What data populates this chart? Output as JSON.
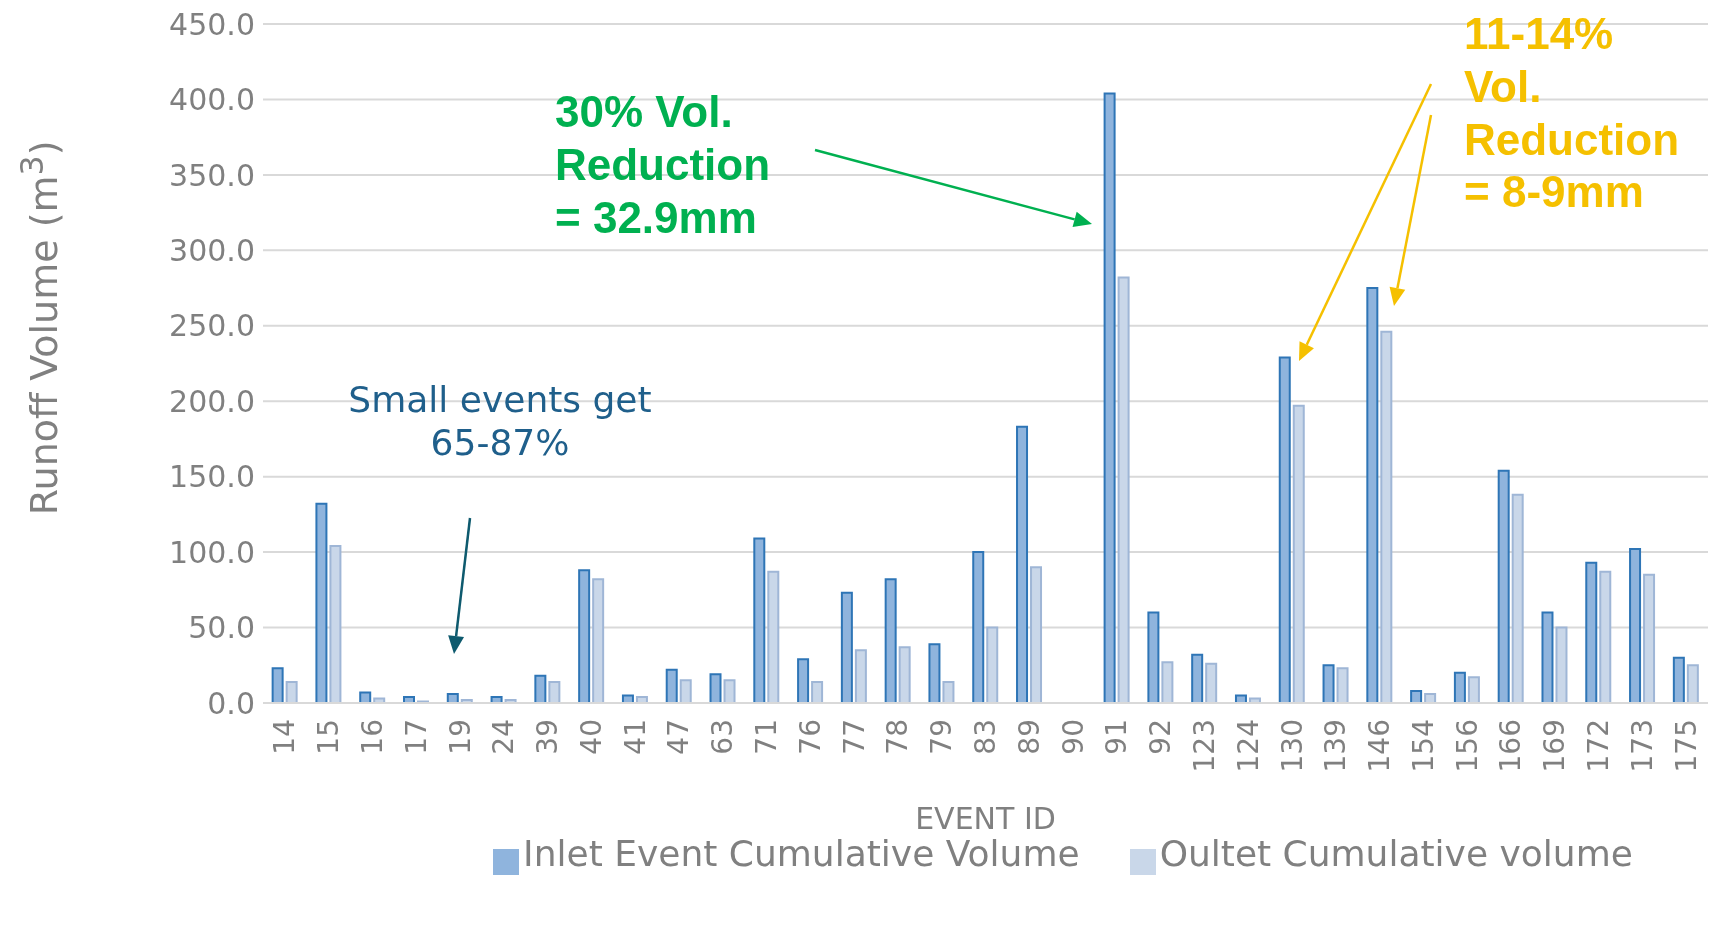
{
  "chart_data": {
    "type": "bar",
    "xlabel": "EVENT ID",
    "ylabel": "Runoff Volume (m$^{3}$)",
    "categories": [
      "14",
      "15",
      "16",
      "17",
      "19",
      "24",
      "39",
      "40",
      "41",
      "47",
      "63",
      "71",
      "76",
      "77",
      "78",
      "79",
      "83",
      "89",
      "90",
      "91",
      "92",
      "123",
      "124",
      "130",
      "139",
      "146",
      "154",
      "156",
      "166",
      "169",
      "172",
      "173",
      "175"
    ],
    "series": [
      {
        "name": "Inlet Event Cumulative Volume",
        "color": "#8fb4dd",
        "values": [
          23,
          132,
          7,
          4,
          6,
          4,
          18,
          88,
          5,
          22,
          19,
          109,
          29,
          73,
          82,
          39,
          100,
          183,
          0,
          404,
          60,
          32,
          5,
          229,
          25,
          275,
          8,
          20,
          154,
          60,
          93,
          102,
          30
        ]
      },
      {
        "name": "Oultet Cumulative volume",
        "color": "#c9d7e9",
        "values": [
          14,
          104,
          3,
          1,
          2,
          2,
          14,
          82,
          4,
          15,
          15,
          87,
          14,
          35,
          37,
          14,
          50,
          90,
          0,
          282,
          27,
          26,
          3,
          197,
          23,
          246,
          6,
          17,
          138,
          50,
          87,
          85,
          25
        ]
      }
    ],
    "ylim": [
      0,
      450
    ],
    "yticks": [
      {
        "value": 0,
        "label": "0.0"
      },
      {
        "value": 50,
        "label": "50.0"
      },
      {
        "value": 100,
        "label": "100.0"
      },
      {
        "value": 150,
        "label": "150.0"
      },
      {
        "value": 200,
        "label": "200.0"
      },
      {
        "value": 250,
        "label": "250.0"
      },
      {
        "value": 300,
        "label": "300.0"
      },
      {
        "value": 350,
        "label": "350.0"
      },
      {
        "value": 400,
        "label": "400.0"
      },
      {
        "value": 450,
        "label": "450.0"
      }
    ],
    "grid": "y",
    "legend": "bottom",
    "annotations": [
      "30% Vol. Reduction = 32.9mm",
      "Small events get 65-87%",
      "11-14% Vol. Reduction = 8-9mm"
    ]
  }
}
